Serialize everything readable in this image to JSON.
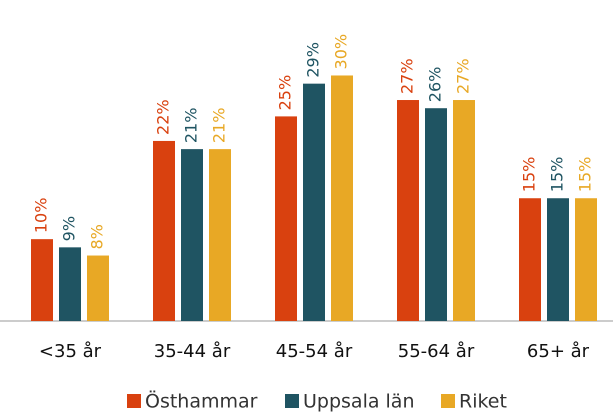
{
  "chart_data": {
    "type": "bar",
    "categories": [
      "<35 år",
      "35-44 år",
      "45-54 år",
      "55-64 år",
      "65+ år"
    ],
    "series": [
      {
        "name": "Östhammar",
        "color": "#d9410f",
        "values": [
          10,
          22,
          25,
          27,
          15
        ],
        "value_labels": [
          "10%",
          "22%",
          "25%",
          "27%",
          "15%"
        ]
      },
      {
        "name": "Uppsala län",
        "color": "#1f5462",
        "values": [
          9,
          21,
          29,
          26,
          15
        ],
        "value_labels": [
          "9%",
          "21%",
          "29%",
          "26%",
          "15%"
        ]
      },
      {
        "name": "Riket",
        "color": "#e8a825",
        "values": [
          8,
          21,
          30,
          27,
          15
        ],
        "value_labels": [
          "8%",
          "21%",
          "30%",
          "27%",
          "15%"
        ]
      }
    ],
    "ylim": [
      0,
      38
    ]
  }
}
